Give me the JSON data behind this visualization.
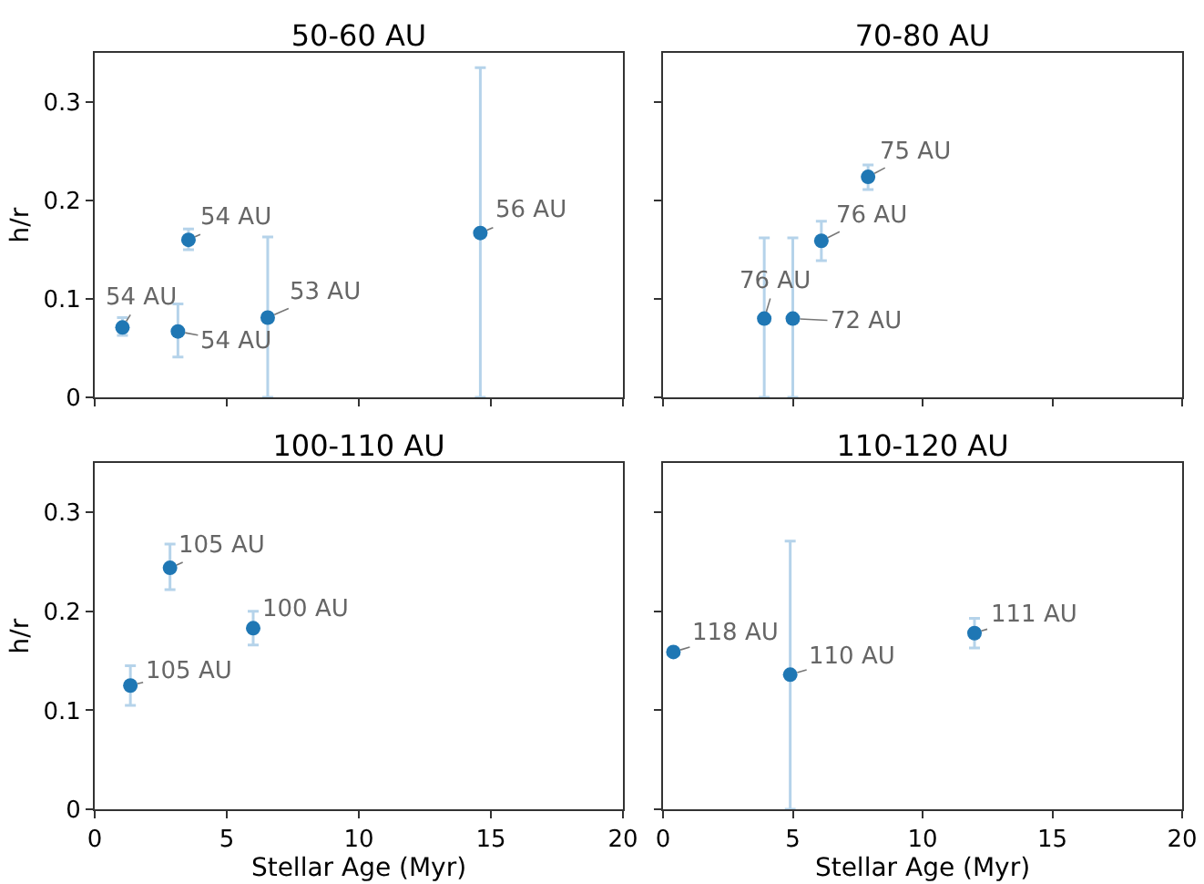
{
  "chart_data": [
    {
      "type": "scatter",
      "title": "50-60 AU",
      "ylabel": "h/r",
      "x": [
        1.05,
        3.15,
        3.55,
        6.55,
        14.6
      ],
      "values": [
        0.071,
        0.067,
        0.16,
        0.081,
        0.167
      ],
      "color": "#1f77b4",
      "errors": [
        [
          0.063,
          0.081
        ],
        [
          0.041,
          0.095
        ],
        [
          0.15,
          0.171
        ],
        [
          0,
          0.163
        ],
        [
          0,
          0.335
        ]
      ],
      "marker": "circle",
      "xlim": [
        0,
        20
      ],
      "xticks": [
        0,
        5,
        10,
        15,
        20
      ],
      "ylim": [
        0,
        0.35
      ],
      "yticks": [
        0,
        0.1,
        0.2,
        0.3
      ],
      "tick_labels": "y",
      "grid": false,
      "annotations": [
        {
          "text": "54 AU",
          "x": 1.05,
          "y": 0.071
        },
        {
          "text": "54 AU",
          "x": 3.15,
          "y": 0.067
        },
        {
          "text": "54 AU",
          "x": 3.55,
          "y": 0.16
        },
        {
          "text": "53 AU",
          "x": 6.55,
          "y": 0.081
        },
        {
          "text": "56 AU",
          "x": 14.6,
          "y": 0.167
        }
      ]
    },
    {
      "type": "scatter",
      "title": "70-80 AU",
      "x": [
        3.9,
        5,
        6.1,
        7.9
      ],
      "values": [
        0.08,
        0.08,
        0.159,
        0.224
      ],
      "color": "#1f77b4",
      "errors": [
        [
          0,
          0.162
        ],
        [
          0,
          0.162
        ],
        [
          0.139,
          0.179
        ],
        [
          0.211,
          0.236
        ]
      ],
      "marker": "circle",
      "xlim": [
        0,
        20
      ],
      "xticks": [
        0,
        5,
        10,
        15,
        20
      ],
      "ylim": [
        0,
        0.35
      ],
      "yticks": [
        0,
        0.1,
        0.2,
        0.3
      ],
      "tick_labels": false,
      "grid": false,
      "annotations": [
        {
          "text": "76 AU",
          "x": 3.9,
          "y": 0.08
        },
        {
          "text": "72 AU",
          "x": 5,
          "y": 0.08
        },
        {
          "text": "76 AU",
          "x": 6.1,
          "y": 0.159
        },
        {
          "text": "75 AU",
          "x": 7.9,
          "y": 0.224
        }
      ]
    },
    {
      "type": "scatter",
      "title": "100-110 AU",
      "xlabel": "Stellar Age (Myr)",
      "ylabel": "h/r",
      "x": [
        1.35,
        2.85,
        6
      ],
      "values": [
        0.125,
        0.244,
        0.183
      ],
      "color": "#1f77b4",
      "errors": [
        [
          0.105,
          0.145
        ],
        [
          0.222,
          0.268
        ],
        [
          0.166,
          0.2
        ]
      ],
      "marker": "circle",
      "xlim": [
        0,
        20
      ],
      "xticks": [
        0,
        5,
        10,
        15,
        20
      ],
      "ylim": [
        0,
        0.35
      ],
      "yticks": [
        0,
        0.1,
        0.2,
        0.3
      ],
      "grid": false,
      "annotations": [
        {
          "text": "105 AU",
          "x": 1.35,
          "y": 0.125
        },
        {
          "text": "105 AU",
          "x": 2.85,
          "y": 0.244
        },
        {
          "text": "100 AU",
          "x": 6,
          "y": 0.183
        }
      ]
    },
    {
      "type": "scatter",
      "title": "110-120 AU",
      "xlabel": "Stellar Age (Myr)",
      "x": [
        0.4,
        4.9,
        12
      ],
      "values": [
        0.159,
        0.136,
        0.178
      ],
      "color": "#1f77b4",
      "errors": [
        null,
        [
          0,
          0.271
        ],
        [
          0.163,
          0.193
        ]
      ],
      "marker": "circle",
      "xlim": [
        0,
        20
      ],
      "xticks": [
        0,
        5,
        10,
        15,
        20
      ],
      "ylim": [
        0,
        0.35
      ],
      "yticks": [
        0,
        0.1,
        0.2,
        0.3
      ],
      "tick_labels": "x",
      "grid": false,
      "annotations": [
        {
          "text": "118 AU",
          "x": 0.4,
          "y": 0.159
        },
        {
          "text": "110 AU",
          "x": 4.9,
          "y": 0.136
        },
        {
          "text": "111 AU",
          "x": 12,
          "y": 0.178
        }
      ]
    }
  ]
}
